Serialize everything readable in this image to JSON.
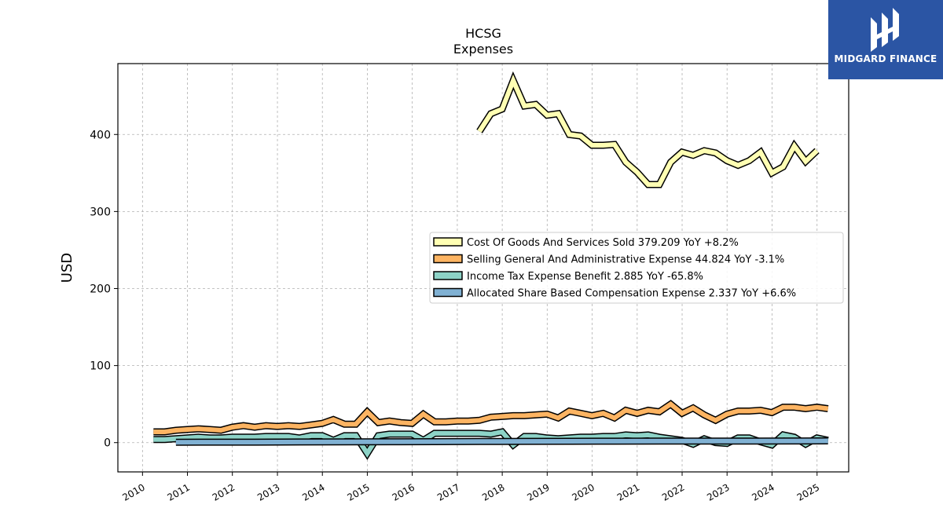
{
  "chart_data": {
    "type": "line",
    "title": "HCSG",
    "subtitle": "Expenses",
    "ylabel": "USD",
    "xlabel": "",
    "xlim": [
      "2009-06-15",
      "2025-09-15"
    ],
    "ylim": [
      -38,
      492
    ],
    "yticks": [
      0,
      100,
      200,
      300,
      400
    ],
    "xticks": [
      "2010",
      "2011",
      "2012",
      "2013",
      "2014",
      "2015",
      "2016",
      "2017",
      "2018",
      "2019",
      "2020",
      "2021",
      "2022",
      "2023",
      "2024",
      "2025"
    ],
    "grid": true,
    "legend_position": "center-right",
    "series": [
      {
        "name": "Cost Of Goods And Services Sold",
        "legend": "Cost Of Goods And Services Sold  379.209 YoY +8.2%",
        "color": "#ffffb3",
        "points": [
          [
            "2017-06-30",
            404
          ],
          [
            "2017-09-30",
            427
          ],
          [
            "2017-12-31",
            433
          ],
          [
            "2018-03-31",
            470
          ],
          [
            "2018-06-30",
            437
          ],
          [
            "2018-09-30",
            439
          ],
          [
            "2018-12-31",
            425
          ],
          [
            "2019-03-31",
            427
          ],
          [
            "2019-06-30",
            400
          ],
          [
            "2019-09-30",
            398
          ],
          [
            "2019-12-31",
            386
          ],
          [
            "2020-03-31",
            386
          ],
          [
            "2020-06-30",
            387
          ],
          [
            "2020-09-30",
            364
          ],
          [
            "2020-12-31",
            351
          ],
          [
            "2021-03-31",
            335
          ],
          [
            "2021-06-30",
            335
          ],
          [
            "2021-09-30",
            364
          ],
          [
            "2021-12-31",
            377
          ],
          [
            "2022-03-31",
            373
          ],
          [
            "2022-06-30",
            379
          ],
          [
            "2022-09-30",
            376
          ],
          [
            "2022-12-31",
            366
          ],
          [
            "2023-03-31",
            360
          ],
          [
            "2023-06-30",
            366
          ],
          [
            "2023-09-30",
            377
          ],
          [
            "2023-12-31",
            350
          ],
          [
            "2024-03-31",
            358
          ],
          [
            "2024-06-30",
            385
          ],
          [
            "2024-09-30",
            365
          ],
          [
            "2024-12-31",
            379
          ]
        ]
      },
      {
        "name": "Selling General And Administrative Expense",
        "legend": "Selling General And Administrative Expense  44.824 YoY -3.1%",
        "color": "#fdb462",
        "points": [
          [
            "2010-03-31",
            14
          ],
          [
            "2010-06-30",
            14
          ],
          [
            "2010-09-30",
            16
          ],
          [
            "2010-12-31",
            17
          ],
          [
            "2011-03-31",
            18
          ],
          [
            "2011-06-30",
            17
          ],
          [
            "2011-09-30",
            16
          ],
          [
            "2011-12-31",
            20
          ],
          [
            "2012-03-31",
            22
          ],
          [
            "2012-06-30",
            20
          ],
          [
            "2012-09-30",
            22
          ],
          [
            "2012-12-31",
            21
          ],
          [
            "2013-03-31",
            22
          ],
          [
            "2013-06-30",
            21
          ],
          [
            "2013-09-30",
            23
          ],
          [
            "2013-12-31",
            25
          ],
          [
            "2014-03-31",
            30
          ],
          [
            "2014-06-30",
            24
          ],
          [
            "2014-09-30",
            24
          ],
          [
            "2014-12-31",
            40
          ],
          [
            "2015-03-31",
            26
          ],
          [
            "2015-06-30",
            28
          ],
          [
            "2015-09-30",
            26
          ],
          [
            "2015-12-31",
            25
          ],
          [
            "2016-03-31",
            37
          ],
          [
            "2016-06-30",
            27
          ],
          [
            "2016-09-30",
            27
          ],
          [
            "2016-12-31",
            28
          ],
          [
            "2017-03-31",
            28
          ],
          [
            "2017-06-30",
            29
          ],
          [
            "2017-09-30",
            33
          ],
          [
            "2017-12-31",
            34
          ],
          [
            "2018-03-31",
            35
          ],
          [
            "2018-06-30",
            35
          ],
          [
            "2018-09-30",
            36
          ],
          [
            "2018-12-31",
            37
          ],
          [
            "2019-03-31",
            32
          ],
          [
            "2019-06-30",
            41
          ],
          [
            "2019-09-30",
            38
          ],
          [
            "2019-12-31",
            35
          ],
          [
            "2020-03-31",
            38
          ],
          [
            "2020-06-30",
            32
          ],
          [
            "2020-09-30",
            42
          ],
          [
            "2020-12-31",
            38
          ],
          [
            "2021-03-31",
            42
          ],
          [
            "2021-06-30",
            40
          ],
          [
            "2021-09-30",
            50
          ],
          [
            "2021-12-31",
            38
          ],
          [
            "2022-03-31",
            45
          ],
          [
            "2022-06-30",
            36
          ],
          [
            "2022-09-30",
            29
          ],
          [
            "2022-12-31",
            37
          ],
          [
            "2023-03-31",
            41
          ],
          [
            "2023-06-30",
            41
          ],
          [
            "2023-09-30",
            42
          ],
          [
            "2023-12-31",
            39
          ],
          [
            "2024-03-31",
            46
          ],
          [
            "2024-06-30",
            46
          ],
          [
            "2024-09-30",
            44
          ],
          [
            "2024-12-31",
            46
          ],
          [
            "2025-03-31",
            44
          ]
        ]
      },
      {
        "name": "Income Tax Expense Benefit",
        "legend": "Income Tax Expense Benefit  2.885 YoY -65.8%",
        "color": "#8dd3c7",
        "points": [
          [
            "2010-03-31",
            4
          ],
          [
            "2010-06-30",
            4
          ],
          [
            "2010-09-30",
            5
          ],
          [
            "2010-12-31",
            6
          ],
          [
            "2011-03-31",
            7
          ],
          [
            "2011-06-30",
            6
          ],
          [
            "2011-09-30",
            6
          ],
          [
            "2011-12-31",
            7
          ],
          [
            "2012-03-31",
            7
          ],
          [
            "2012-06-30",
            7
          ],
          [
            "2012-09-30",
            8
          ],
          [
            "2012-12-31",
            8
          ],
          [
            "2013-03-31",
            8
          ],
          [
            "2013-06-30",
            6
          ],
          [
            "2013-09-30",
            9
          ],
          [
            "2013-12-31",
            9
          ],
          [
            "2014-03-31",
            3
          ],
          [
            "2014-06-30",
            9
          ],
          [
            "2014-09-30",
            9
          ],
          [
            "2014-12-31",
            -14
          ],
          [
            "2015-03-31",
            9
          ],
          [
            "2015-06-30",
            11
          ],
          [
            "2015-09-30",
            11
          ],
          [
            "2015-12-31",
            11
          ],
          [
            "2016-03-31",
            3
          ],
          [
            "2016-06-30",
            12
          ],
          [
            "2016-09-30",
            12
          ],
          [
            "2016-12-31",
            12
          ],
          [
            "2017-03-31",
            12
          ],
          [
            "2017-06-30",
            12
          ],
          [
            "2017-09-30",
            11
          ],
          [
            "2017-12-31",
            14
          ],
          [
            "2018-03-31",
            -3
          ],
          [
            "2018-06-30",
            8
          ],
          [
            "2018-09-30",
            8
          ],
          [
            "2018-12-31",
            6
          ],
          [
            "2019-03-31",
            5
          ],
          [
            "2019-06-30",
            6
          ],
          [
            "2019-09-30",
            7
          ],
          [
            "2019-12-31",
            7
          ],
          [
            "2020-03-31",
            8
          ],
          [
            "2020-06-30",
            8
          ],
          [
            "2020-09-30",
            10
          ],
          [
            "2020-12-31",
            9
          ],
          [
            "2021-03-31",
            10
          ],
          [
            "2021-06-30",
            7
          ],
          [
            "2021-09-30",
            5
          ],
          [
            "2021-12-31",
            3
          ],
          [
            "2022-03-31",
            -2
          ],
          [
            "2022-06-30",
            5
          ],
          [
            "2022-09-30",
            0
          ],
          [
            "2022-12-31",
            -1
          ],
          [
            "2023-03-31",
            6
          ],
          [
            "2023-06-30",
            6
          ],
          [
            "2023-09-30",
            1
          ],
          [
            "2023-12-31",
            -3
          ],
          [
            "2024-03-31",
            10
          ],
          [
            "2024-06-30",
            7
          ],
          [
            "2024-09-30",
            -2
          ],
          [
            "2024-12-31",
            6
          ],
          [
            "2025-03-31",
            3
          ]
        ]
      },
      {
        "name": "Allocated Share Based Compensation Expense",
        "legend": "Allocated Share Based Compensation Expense  2.337 YoY +6.6%",
        "color": "#80b1d3",
        "points": [
          [
            "2010-09-30",
            0.5
          ],
          [
            "2011-06-30",
            0.6
          ],
          [
            "2012-06-30",
            0.6
          ],
          [
            "2013-06-30",
            0.8
          ],
          [
            "2014-06-30",
            1.0
          ],
          [
            "2015-06-30",
            1.1
          ],
          [
            "2016-06-30",
            1.2
          ],
          [
            "2017-06-30",
            1.4
          ],
          [
            "2018-06-30",
            1.6
          ],
          [
            "2019-06-30",
            1.8
          ],
          [
            "2020-06-30",
            1.9
          ],
          [
            "2021-06-30",
            2.1
          ],
          [
            "2022-06-30",
            2.0
          ],
          [
            "2023-06-30",
            2.1
          ],
          [
            "2024-06-30",
            2.2
          ],
          [
            "2025-03-31",
            2.3
          ]
        ]
      }
    ]
  },
  "logo": {
    "text": "MIDGARD FINANCE",
    "color": "#2b55a4"
  }
}
